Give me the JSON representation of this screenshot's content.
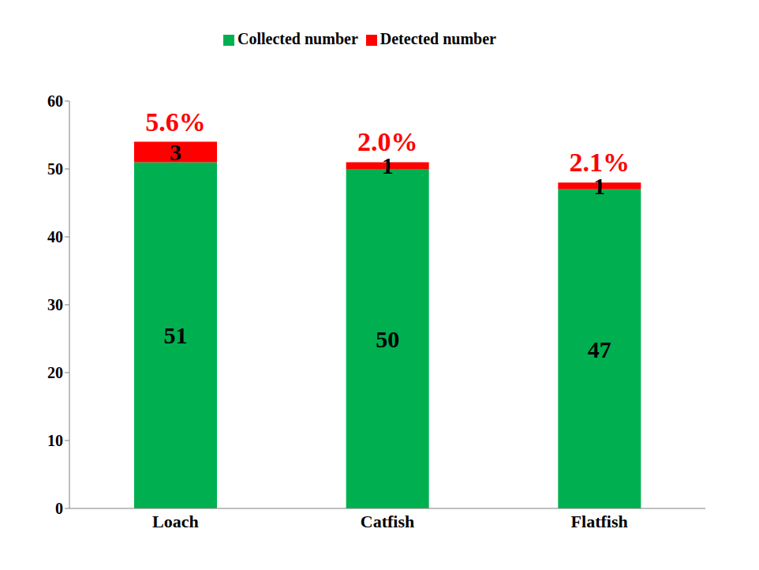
{
  "chart_data": {
    "type": "bar",
    "stacked": true,
    "data_labels": true,
    "legend": "top",
    "grid": false,
    "categories": [
      "Loach",
      "Catfish",
      "Flatfish"
    ],
    "series": [
      {
        "name": "Collected number",
        "color": "#00b050",
        "values": [
          51,
          50,
          47
        ]
      },
      {
        "name": "Detected number",
        "color": "#ff0000",
        "values": [
          3,
          1,
          1
        ]
      }
    ],
    "annotations": [
      "5.6%",
      "2.0%",
      "2.1%"
    ],
    "ylim": [
      0,
      60
    ],
    "yticks": [
      0,
      10,
      20,
      30,
      40,
      50,
      60
    ]
  }
}
